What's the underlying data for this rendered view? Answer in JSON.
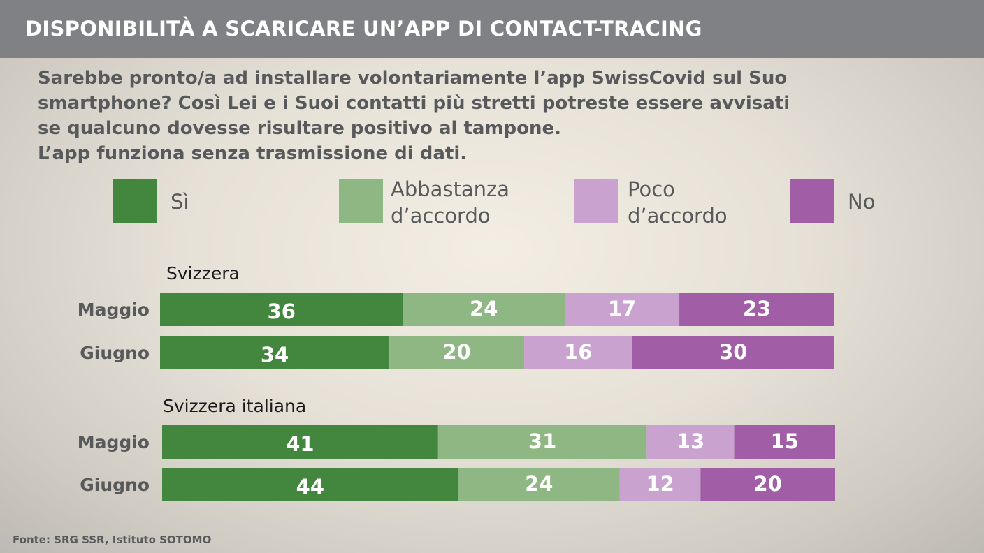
{
  "header": {
    "title": "DISPONIBILITÀ A SCARICARE UN’APP DI CONTACT-TRACING"
  },
  "question": {
    "lines": [
      "Sarebbe pronto/a ad installare volontariamente l’app SwissCovid sul Suo",
      "smartphone? Così Lei e i Suoi contatti più stretti potreste essere avvisati",
      "se qualcuno dovesse risultare positivo al tampone.",
      "L’app funziona senza trasmissione di dati."
    ]
  },
  "legend": [
    {
      "lines": [
        "Sì"
      ],
      "color": "#43873f"
    },
    {
      "lines": [
        "Abbastanza",
        "d’accordo"
      ],
      "color": "#8fb783"
    },
    {
      "lines": [
        "Poco",
        "d’accordo"
      ],
      "color": "#c9a2cf"
    },
    {
      "lines": [
        "No"
      ],
      "color": "#a15ea6"
    }
  ],
  "source": "Fonte: SRG SSR, Istituto SOTOMO",
  "chart_data": {
    "type": "bar",
    "orientation": "horizontal",
    "stacked": true,
    "xlim": [
      0,
      100
    ],
    "series_order": [
      "Sì",
      "Abbastanza d’accordo",
      "Poco d’accordo",
      "No"
    ],
    "series_colors": [
      "#43873f",
      "#8fb783",
      "#c9a2cf",
      "#a15ea6"
    ],
    "groups": [
      {
        "name": "Svizzera",
        "rows": [
          {
            "label": "Maggio",
            "values": [
              36,
              24,
              17,
              23
            ]
          },
          {
            "label": "Giugno",
            "values": [
              34,
              20,
              16,
              30
            ]
          }
        ]
      },
      {
        "name": "Svizzera italiana",
        "rows": [
          {
            "label": "Maggio",
            "values": [
              41,
              31,
              13,
              15
            ]
          },
          {
            "label": "Giugno",
            "values": [
              44,
              24,
              12,
              20
            ]
          }
        ]
      }
    ]
  }
}
